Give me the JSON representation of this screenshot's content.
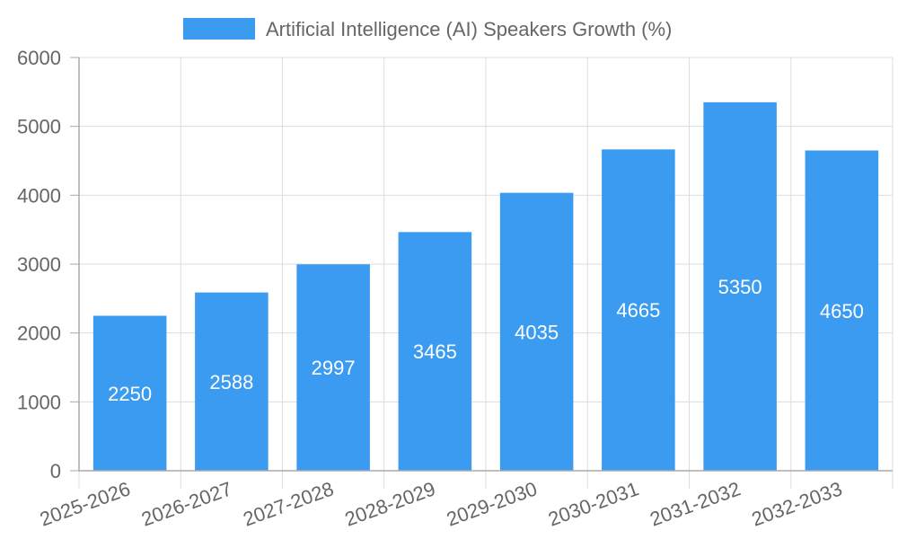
{
  "chart_data": {
    "type": "bar",
    "categories": [
      "2025-2026",
      "2026-2027",
      "2027-2028",
      "2028-2029",
      "2029-2030",
      "2030-2031",
      "2031-2032",
      "2032-2033"
    ],
    "series": [
      {
        "name": "Artificial Intelligence (AI) Speakers Growth (%)",
        "values": [
          2250,
          2588,
          2997,
          3465,
          4035,
          4665,
          5350,
          4650
        ],
        "color": "#3a9bf0"
      }
    ],
    "data_labels": [
      "2250",
      "2588",
      "2997",
      "3465",
      "4035",
      "4665",
      "5350",
      "4650"
    ],
    "y_ticks": [
      "0",
      "1000",
      "2000",
      "3000",
      "4000",
      "5000",
      "6000"
    ],
    "ylim": [
      0,
      6000
    ],
    "grid": true,
    "legend_position": "top-center",
    "x_tick_rotation": "diagonal",
    "colors": {
      "bar": "#3a9bf0",
      "grid": "#dddddd",
      "axis": "#aaaaaa",
      "tick_text": "#666666",
      "data_label_text": "#ffffff"
    }
  }
}
